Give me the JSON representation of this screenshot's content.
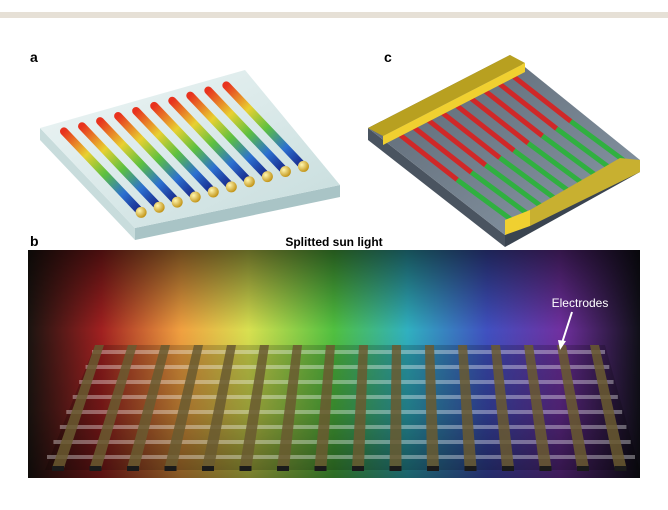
{
  "panels": [
    {
      "label": "a"
    },
    {
      "label": "c"
    },
    {
      "label": "b",
      "title": "Splitted sun light",
      "annotation": "Electrodes"
    }
  ]
}
